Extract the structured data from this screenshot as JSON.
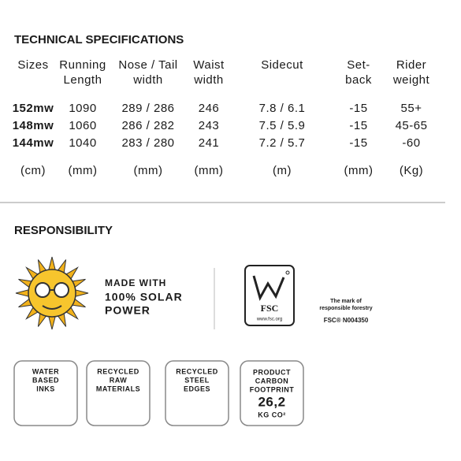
{
  "specs": {
    "title": "TECHNICAL SPECIFICATIONS",
    "headers": [
      [
        "Sizes"
      ],
      [
        "Running",
        "Length"
      ],
      [
        "Nose / Tail",
        "width"
      ],
      [
        "Waist",
        "width"
      ],
      [
        "Sidecut"
      ],
      [
        "Set-",
        "back"
      ],
      [
        "Rider",
        "weight"
      ]
    ],
    "rows": [
      [
        "152mw",
        "1090",
        "289 / 286",
        "246",
        "7.8 / 6.1",
        "-15",
        "55+"
      ],
      [
        "148mw",
        "1060",
        "286 / 282",
        "243",
        "7.5 / 5.9",
        "-15",
        "45-65"
      ],
      [
        "144mw",
        "1040",
        "283 / 280",
        "241",
        "7.2 / 5.7",
        "-15",
        "-60"
      ]
    ],
    "units": [
      "(cm)",
      "(mm)",
      "(mm)",
      "(mm)",
      "(m)",
      "(mm)",
      "(Kg)"
    ]
  },
  "responsibility": {
    "title": "RESPONSIBILITY",
    "solar": [
      "MADE WITH",
      "100% SOLAR",
      "POWER"
    ],
    "fsc": {
      "logo": "FSC",
      "url": "www.fsc.org",
      "mark": [
        "The mark of",
        "responsible forestry"
      ],
      "code": "FSC® N004350"
    },
    "badges": [
      [
        "WATER",
        "BASED",
        "INKS"
      ],
      [
        "RECYCLED",
        "RAW",
        "MATERIALS"
      ],
      [
        "RECYCLED",
        "STEEL",
        "EDGES"
      ],
      [
        "PRODUCT",
        "CARBON",
        "FOOTPRINT",
        "26,2",
        "KG CO²"
      ]
    ]
  }
}
